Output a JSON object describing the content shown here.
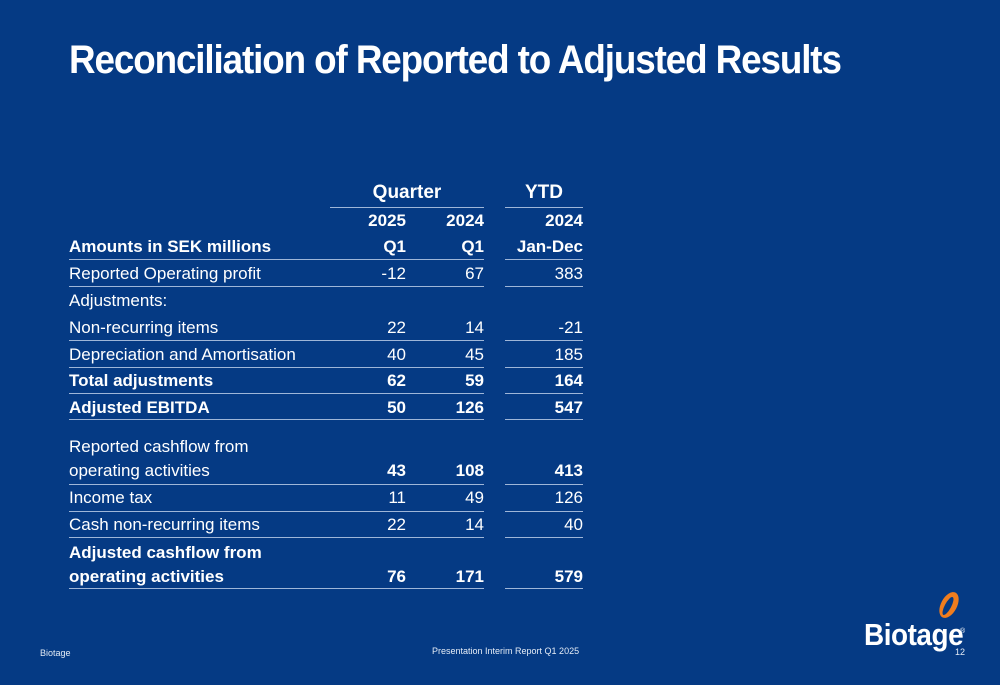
{
  "title": "Reconciliation of Reported to Adjusted Results",
  "table": {
    "group_headers": {
      "quarter": "Quarter",
      "ytd": "YTD"
    },
    "years": [
      "2025",
      "2024",
      "2024"
    ],
    "periods": [
      "Q1",
      "Q1",
      "Jan-Dec"
    ],
    "amounts_label": "Amounts in SEK millions",
    "rows": [
      {
        "label": "Reported Operating profit",
        "v": [
          "-12",
          "67",
          "383"
        ]
      },
      {
        "label": "Adjustments:",
        "v": [
          "",
          "",
          ""
        ]
      },
      {
        "label": "Non-recurring items",
        "v": [
          "22",
          "14",
          "-21"
        ]
      },
      {
        "label": "Depreciation and Amortisation",
        "v": [
          "40",
          "45",
          "185"
        ]
      },
      {
        "label": "Total adjustments",
        "v": [
          "62",
          "59",
          "164"
        ]
      },
      {
        "label": "Adjusted EBITDA",
        "v": [
          "50",
          "126",
          "547"
        ]
      },
      {
        "label": "Reported cashflow from",
        "v": [
          "",
          "",
          ""
        ]
      },
      {
        "label": "operating activities",
        "v": [
          "43",
          "108",
          "413"
        ]
      },
      {
        "label": "Income tax",
        "v": [
          "11",
          "49",
          "126"
        ]
      },
      {
        "label": "Cash non-recurring items",
        "v": [
          "22",
          "14",
          "40"
        ]
      },
      {
        "label": "Adjusted cashflow from",
        "v": [
          "",
          "",
          ""
        ]
      },
      {
        "label": "operating activities",
        "v": [
          "76",
          "171",
          "579"
        ]
      }
    ]
  },
  "footer": {
    "left": "Biotage",
    "center": "Presentation Interim Report Q1 2025",
    "page": "12"
  },
  "logo": {
    "text": "Biotage",
    "reg": "®",
    "accent_color": "#f07d1e"
  }
}
